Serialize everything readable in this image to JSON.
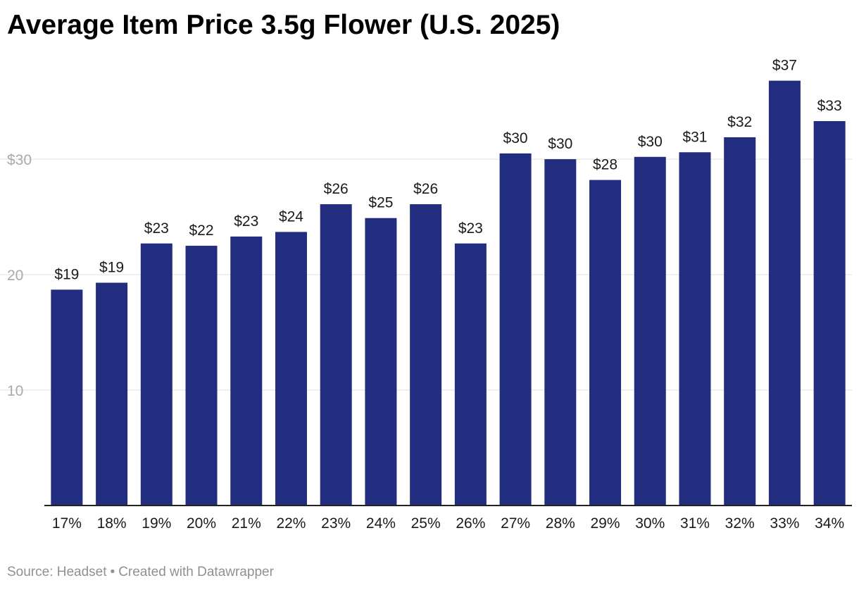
{
  "chart_data": {
    "type": "bar",
    "title": "Average Item Price 3.5g Flower (U.S. 2025)",
    "xlabel": "",
    "ylabel": "",
    "categories": [
      "17%",
      "18%",
      "19%",
      "20%",
      "21%",
      "22%",
      "23%",
      "24%",
      "25%",
      "26%",
      "27%",
      "28%",
      "29%",
      "30%",
      "31%",
      "32%",
      "33%",
      "34%"
    ],
    "values": [
      18.7,
      19.3,
      22.7,
      22.5,
      23.3,
      23.7,
      26.1,
      24.9,
      26.1,
      22.7,
      30.5,
      30.0,
      28.2,
      30.2,
      30.6,
      31.9,
      36.8,
      33.3
    ],
    "data_labels": [
      "$19",
      "$19",
      "$23",
      "$22",
      "$23",
      "$24",
      "$26",
      "$25",
      "$26",
      "$23",
      "$30",
      "$30",
      "$28",
      "$30",
      "$31",
      "$32",
      "$37",
      "$33"
    ],
    "y_ticks": [
      {
        "value": 10,
        "label": "10"
      },
      {
        "value": 20,
        "label": "20"
      },
      {
        "value": 30,
        "label": "$30"
      }
    ],
    "ylim": [
      0,
      38.3
    ],
    "grid": true,
    "legend": "none",
    "bar_color": "#232d7f",
    "grid_color": "#e0e0e0",
    "tick_label_color": "#aaaaaa",
    "baseline_color": "#222222"
  },
  "footer": {
    "source": "Source: Headset",
    "separator": "•",
    "credit": "Created with Datawrapper"
  }
}
